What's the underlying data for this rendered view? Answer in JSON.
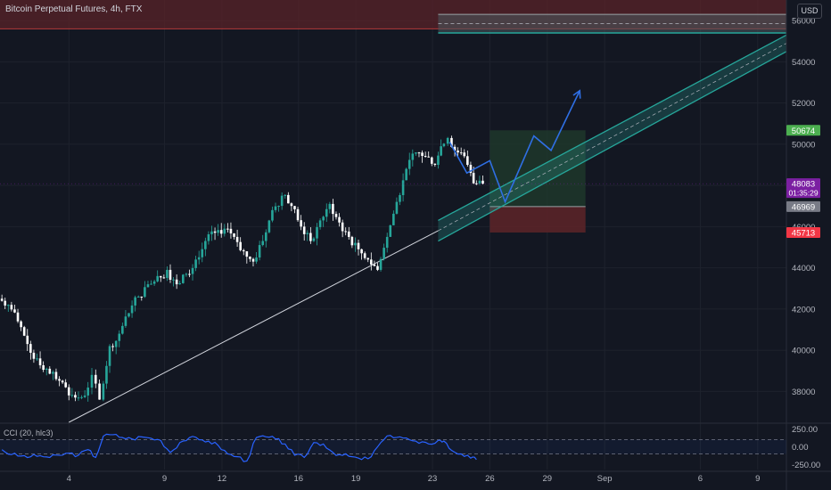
{
  "header": {
    "title": "Bitcoin Perpetual Futures, 4h, FTX",
    "currency": "USD"
  },
  "colors": {
    "background": "#131722",
    "up": "#26a69a",
    "down": "#ffffff",
    "grid": "#1e222d",
    "axis_text": "#b2b5be",
    "resistance_zone": "#5a2328",
    "channel": "#26a69a",
    "projection": "#2f6fe4",
    "cci_line": "#2962ff",
    "long_target": "#1f3a2c",
    "long_stop": "#5a2328",
    "trendline": "#d1d4dc"
  },
  "chart_data": [
    {
      "type": "candlestick",
      "symbol": "Bitcoin Perpetual Futures",
      "interval": "4h",
      "exchange": "FTX",
      "ylim": [
        36500,
        57000
      ],
      "yscale": "linear",
      "grid": true,
      "y_ticks": [
        38000,
        40000,
        42000,
        44000,
        46000,
        48000,
        50000,
        52000,
        54000,
        56000
      ],
      "x_tick_labels": [
        "4",
        "9",
        "12",
        "16",
        "19",
        "23",
        "26",
        "29",
        "Sep",
        "6",
        "9"
      ],
      "x_tick_days": [
        4,
        9,
        12,
        16,
        19,
        23,
        26,
        29,
        32,
        37,
        40
      ],
      "x_range_days": [
        0.4,
        41.5
      ],
      "series_close": [
        [
          0.5,
          42200
        ],
        [
          1.0,
          41400
        ],
        [
          1.5,
          40300
        ],
        [
          2.0,
          39600
        ],
        [
          2.5,
          39100
        ],
        [
          3.0,
          38600
        ],
        [
          3.5,
          38200
        ],
        [
          4.0,
          37700
        ],
        [
          4.5,
          37800
        ],
        [
          5.0,
          38800
        ],
        [
          5.4,
          37600
        ],
        [
          5.8,
          40200
        ],
        [
          6.3,
          40800
        ],
        [
          6.8,
          41800
        ],
        [
          7.3,
          42600
        ],
        [
          7.8,
          43200
        ],
        [
          8.3,
          43600
        ],
        [
          8.8,
          43900
        ],
        [
          9.3,
          43200
        ],
        [
          9.8,
          43700
        ],
        [
          10.3,
          44400
        ],
        [
          10.8,
          45300
        ],
        [
          11.3,
          45700
        ],
        [
          11.8,
          45900
        ],
        [
          12.3,
          45500
        ],
        [
          12.8,
          44800
        ],
        [
          13.3,
          44300
        ],
        [
          13.8,
          45300
        ],
        [
          14.3,
          46800
        ],
        [
          14.8,
          47500
        ],
        [
          15.3,
          47000
        ],
        [
          15.8,
          46000
        ],
        [
          16.3,
          45300
        ],
        [
          16.8,
          46300
        ],
        [
          17.3,
          47100
        ],
        [
          17.8,
          46200
        ],
        [
          18.3,
          45500
        ],
        [
          18.8,
          44900
        ],
        [
          19.3,
          44400
        ],
        [
          19.8,
          43900
        ],
        [
          20.3,
          45500
        ],
        [
          20.8,
          47200
        ],
        [
          21.3,
          48800
        ],
        [
          21.8,
          49600
        ],
        [
          22.3,
          49400
        ],
        [
          22.8,
          49000
        ],
        [
          23.3,
          49900
        ],
        [
          23.6,
          50300
        ],
        [
          24.0,
          49600
        ],
        [
          24.5,
          49000
        ],
        [
          25.0,
          48100
        ],
        [
          25.3,
          48083
        ]
      ],
      "price_labels": [
        {
          "value": 50674,
          "text": "50674",
          "color": "#4caf50"
        },
        {
          "value": 48083,
          "text": "48083",
          "sub": "01:35:29",
          "color": "#7b1fa2"
        },
        {
          "value": 46969,
          "text": "46969",
          "color": "#787b86"
        },
        {
          "value": 45713,
          "text": "45713",
          "color": "#f23645"
        }
      ],
      "annotations": {
        "resistance_zone": {
          "from": 55600,
          "to": 58000
        },
        "top_channel": {
          "day_from": 23.3,
          "day_to": 41.5,
          "upper": 56300,
          "lower": 55400
        },
        "long_position": {
          "day_from": 26.0,
          "day_to": 31.0,
          "entry": 46969,
          "target": 50674,
          "stop": 45713
        },
        "trendline": {
          "from": [
            4.0,
            36500
          ],
          "to": [
            23.3,
            45800
          ]
        },
        "rising_channel": {
          "lower": {
            "from": [
              23.3,
              45300
            ],
            "to": [
              41.5,
              54500
            ]
          },
          "upper": {
            "from": [
              23.3,
              46300
            ],
            "to": [
              41.5,
              55300
            ]
          }
        },
        "projection_path": [
          [
            23.9,
            50100
          ],
          [
            24.8,
            48600
          ],
          [
            26.0,
            49200
          ],
          [
            26.8,
            47200
          ],
          [
            28.3,
            50400
          ],
          [
            29.2,
            49700
          ],
          [
            30.7,
            52600
          ]
        ]
      }
    },
    {
      "type": "line",
      "name": "CCI (20, hlc3)",
      "ylim": [
        -320,
        320
      ],
      "y_ticks": [
        250.0,
        0.0,
        -250.0
      ],
      "y_tick_labels": [
        "250.00",
        "0.00",
        "-250.00"
      ],
      "bands": [
        100,
        -100
      ],
      "series": [
        [
          0.5,
          -40
        ],
        [
          1.0,
          -110
        ],
        [
          1.5,
          -130
        ],
        [
          2.0,
          -140
        ],
        [
          2.5,
          -125
        ],
        [
          3.0,
          -150
        ],
        [
          3.5,
          -120
        ],
        [
          4.0,
          -90
        ],
        [
          4.5,
          -120
        ],
        [
          5.0,
          -40
        ],
        [
          5.4,
          -150
        ],
        [
          5.8,
          150
        ],
        [
          6.3,
          170
        ],
        [
          6.8,
          130
        ],
        [
          7.3,
          110
        ],
        [
          7.8,
          140
        ],
        [
          8.3,
          120
        ],
        [
          8.8,
          90
        ],
        [
          9.3,
          -80
        ],
        [
          9.8,
          60
        ],
        [
          10.3,
          130
        ],
        [
          10.8,
          100
        ],
        [
          11.3,
          80
        ],
        [
          11.8,
          20
        ],
        [
          12.3,
          -100
        ],
        [
          12.8,
          -140
        ],
        [
          13.3,
          -200
        ],
        [
          13.8,
          130
        ],
        [
          14.3,
          140
        ],
        [
          14.8,
          110
        ],
        [
          15.3,
          40
        ],
        [
          15.8,
          -120
        ],
        [
          16.3,
          -150
        ],
        [
          16.8,
          60
        ],
        [
          17.3,
          40
        ],
        [
          17.8,
          -80
        ],
        [
          18.3,
          -120
        ],
        [
          18.8,
          -140
        ],
        [
          19.3,
          -180
        ],
        [
          19.8,
          -140
        ],
        [
          20.3,
          60
        ],
        [
          20.8,
          160
        ],
        [
          21.3,
          140
        ],
        [
          21.8,
          100
        ],
        [
          22.3,
          50
        ],
        [
          22.8,
          40
        ],
        [
          23.3,
          90
        ],
        [
          23.6,
          80
        ],
        [
          24.0,
          -50
        ],
        [
          24.5,
          -100
        ],
        [
          25.0,
          -160
        ],
        [
          25.3,
          -180
        ]
      ]
    }
  ]
}
